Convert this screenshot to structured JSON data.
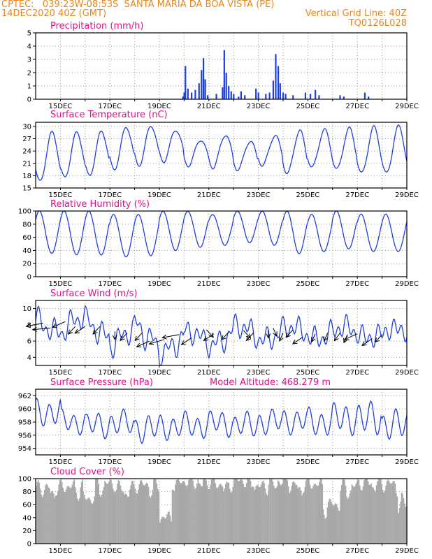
{
  "header": {
    "line1_left": "CPTEC:   039:23W-08:53S  SANTA MARIA DA BOA VISTA (PE)",
    "line2_left": "14DEC2020 40Z (GMT)",
    "line2_right": "Vertical Grid Line: 40Z",
    "line3_right": "TQ0126L028"
  },
  "colors": {
    "header": "#e8861e",
    "title": "#e0108a",
    "line": "#1f3fe0",
    "cloud": "#a8a8a8"
  },
  "x_ticks": [
    "15DEC",
    "17DEC",
    "19DEC",
    "21DEC",
    "23DEC",
    "25DEC",
    "27DEC",
    "29DEC"
  ],
  "chart_data": [
    {
      "type": "bar",
      "title": "Precipitation (mm/h)",
      "ylim": [
        0,
        5
      ],
      "yticks": [
        "0",
        "1",
        "2",
        "3",
        "4",
        "5"
      ],
      "x_range_days": [
        14.0,
        29.0
      ],
      "events": [
        [
          19.95,
          0.2
        ],
        [
          20.0,
          0.5
        ],
        [
          20.05,
          2.5
        ],
        [
          20.15,
          0.8
        ],
        [
          20.3,
          0.5
        ],
        [
          20.45,
          0.7
        ],
        [
          20.6,
          1.2
        ],
        [
          20.7,
          2.2
        ],
        [
          20.78,
          3.1
        ],
        [
          20.85,
          1.5
        ],
        [
          20.95,
          0.3
        ],
        [
          21.3,
          0.4
        ],
        [
          21.55,
          0.9
        ],
        [
          21.62,
          3.7
        ],
        [
          21.7,
          2.0
        ],
        [
          21.8,
          1.0
        ],
        [
          21.9,
          0.6
        ],
        [
          22.0,
          0.4
        ],
        [
          22.2,
          0.2
        ],
        [
          22.3,
          0.6
        ],
        [
          22.45,
          0.3
        ],
        [
          22.9,
          0.8
        ],
        [
          23.0,
          0.5
        ],
        [
          23.3,
          0.4
        ],
        [
          23.45,
          0.5
        ],
        [
          23.6,
          1.4
        ],
        [
          23.7,
          3.4
        ],
        [
          23.8,
          2.5
        ],
        [
          23.88,
          1.2
        ],
        [
          24.0,
          0.5
        ],
        [
          24.1,
          0.4
        ],
        [
          24.4,
          0.3
        ],
        [
          24.9,
          0.5
        ],
        [
          25.1,
          0.4
        ],
        [
          25.3,
          0.7
        ],
        [
          25.45,
          0.3
        ],
        [
          26.3,
          0.3
        ],
        [
          26.45,
          0.2
        ],
        [
          27.3,
          0.5
        ],
        [
          27.45,
          0.2
        ]
      ]
    },
    {
      "type": "line",
      "title": "Surface Temperature (nC)",
      "ylim": [
        15,
        31
      ],
      "yticks": [
        "15",
        "18",
        "21",
        "24",
        "27",
        "30"
      ],
      "daily_max": [
        28.5,
        28.5,
        28.8,
        29.8,
        30.2,
        29.2,
        26.8,
        28.0,
        26.5,
        27.8,
        29.0,
        29.2,
        29.5,
        29.8,
        30.0
      ],
      "daily_min": [
        16.5,
        17.5,
        18.0,
        19.5,
        20.5,
        21.5,
        20.5,
        20.0,
        19.5,
        20.5,
        18.5,
        20.0,
        19.5,
        18.5,
        18.5
      ]
    },
    {
      "type": "line",
      "title": "Relative Humidity (%)",
      "ylim": [
        0,
        100
      ],
      "yticks": [
        "0",
        "20",
        "40",
        "60",
        "80",
        "100"
      ],
      "daily_max": [
        100,
        100,
        100,
        95,
        95,
        100,
        100,
        95,
        100,
        100,
        100,
        95,
        100,
        95,
        95
      ],
      "daily_min": [
        35,
        33,
        33,
        30,
        32,
        40,
        45,
        48,
        52,
        48,
        35,
        38,
        42,
        38,
        38
      ]
    },
    {
      "type": "line",
      "title": "Surface Wind (m/s)",
      "ylim": [
        3,
        11
      ],
      "yticks": [
        "4",
        "6",
        "8",
        "10"
      ],
      "daily_center": [
        8.0,
        8.0,
        7.5,
        6.5,
        6.5,
        5.5,
        6.5,
        6.5,
        7.0,
        7.0,
        7.0,
        7.0,
        7.0,
        7.0,
        7.0
      ],
      "daily_amp": [
        1.8,
        2.0,
        2.0,
        2.0,
        2.5,
        2.0,
        1.5,
        2.0,
        1.8,
        1.8,
        1.5,
        1.5,
        1.5,
        1.2,
        1.0
      ],
      "arrows": [
        [
          14.3,
          8.2,
          1
        ],
        [
          14.6,
          7.6,
          0.5
        ],
        [
          15.2,
          8.4,
          2
        ],
        [
          15.6,
          7.8,
          3
        ],
        [
          16.0,
          7.8,
          2.5
        ],
        [
          16.6,
          7.8,
          3
        ],
        [
          17.2,
          7.2,
          4
        ],
        [
          17.7,
          7.0,
          3
        ],
        [
          18.3,
          7.0,
          3
        ],
        [
          18.6,
          6.0,
          2
        ],
        [
          19.2,
          6.2,
          1.5
        ],
        [
          19.8,
          6.8,
          1
        ],
        [
          20.3,
          6.4,
          2.5
        ],
        [
          20.9,
          7.4,
          5
        ],
        [
          21.2,
          6.9,
          2.5
        ],
        [
          21.8,
          7.1,
          3
        ],
        [
          22.4,
          7.3,
          5
        ],
        [
          22.8,
          7.0,
          3
        ],
        [
          23.4,
          7.4,
          4
        ],
        [
          23.6,
          7.6,
          4.5
        ],
        [
          24.0,
          7.0,
          3.5
        ],
        [
          24.4,
          7.4,
          3
        ],
        [
          24.8,
          6.5,
          2.5
        ],
        [
          25.3,
          6.9,
          3.5
        ],
        [
          25.8,
          7.0,
          3.5
        ],
        [
          26.3,
          7.0,
          3.2
        ],
        [
          26.6,
          6.8,
          3.5
        ],
        [
          27.0,
          6.9,
          2
        ],
        [
          27.6,
          6.3,
          2.5
        ],
        [
          28.0,
          6.8,
          3
        ]
      ]
    },
    {
      "type": "line",
      "title": "Surface Pressure (hPa)",
      "annotation": "Model Altitude: 468.279 m",
      "ylim": [
        953,
        963
      ],
      "yticks": [
        "954",
        "956",
        "958",
        "960",
        "962"
      ],
      "daily_base": [
        959.5,
        958.0,
        957.5,
        957.8,
        957.0,
        957.3,
        957.5,
        957.8,
        957.5,
        958.0,
        958.2,
        958.0,
        958.5,
        958.5,
        957.5
      ],
      "daily_amp": [
        2.2,
        1.8,
        2.0,
        2.0,
        2.2,
        2.0,
        2.0,
        2.0,
        2.0,
        2.0,
        2.0,
        2.2,
        2.5,
        2.8,
        2.5
      ]
    },
    {
      "type": "area",
      "title": "Cloud Cover (%)",
      "ylim": [
        0,
        100
      ],
      "yticks": [
        "0",
        "20",
        "40",
        "60",
        "80",
        "100"
      ],
      "segments": [
        [
          14.0,
          15.0,
          85
        ],
        [
          15.0,
          15.9,
          88
        ],
        [
          15.9,
          16.4,
          70
        ],
        [
          16.4,
          17.2,
          92
        ],
        [
          17.2,
          18.0,
          85
        ],
        [
          18.0,
          19.0,
          90
        ],
        [
          19.0,
          19.5,
          40
        ],
        [
          19.5,
          21.2,
          96
        ],
        [
          21.2,
          22.0,
          92
        ],
        [
          22.0,
          22.8,
          97
        ],
        [
          22.8,
          23.4,
          88
        ],
        [
          23.4,
          24.2,
          97
        ],
        [
          24.2,
          24.9,
          90
        ],
        [
          24.9,
          25.6,
          92
        ],
        [
          25.6,
          26.3,
          60
        ],
        [
          26.3,
          27.0,
          88
        ],
        [
          27.0,
          27.8,
          95
        ],
        [
          27.8,
          28.6,
          92
        ],
        [
          28.6,
          29.0,
          65
        ]
      ]
    }
  ]
}
